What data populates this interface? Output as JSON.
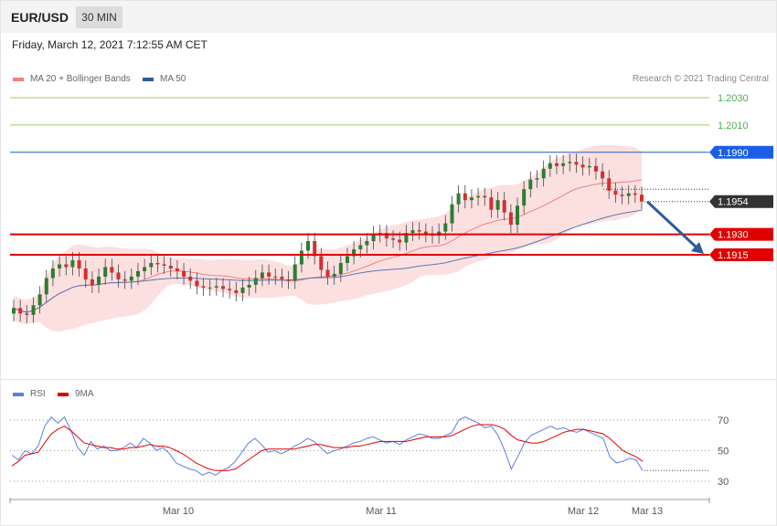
{
  "header": {
    "pair": "EUR/USD",
    "timeframe": "30 MIN"
  },
  "date_line": "Friday, March 12, 2021 7:12:55 AM CET",
  "legend": {
    "ma20": {
      "label": "MA 20 + Bollinger Bands",
      "color": "#f08080"
    },
    "ma50": {
      "label": "MA 50",
      "color": "#2c5a9c"
    },
    "rsi": {
      "label": "RSI",
      "color": "#5b7fe0"
    },
    "rsi_ma": {
      "label": "9MA",
      "color": "#e00000"
    }
  },
  "credit": "Research © 2021 Trading Central",
  "chart_data": [
    {
      "type": "candlestick",
      "y_range": [
        1.1846,
        1.2046
      ],
      "x_tick_labels": [
        "Mar 10",
        "Mar 11",
        "Mar 12",
        "Mar 13"
      ],
      "close_series": [
        1.1876,
        1.1872,
        1.1871,
        1.1878,
        1.1886,
        1.1898,
        1.1905,
        1.1908,
        1.1906,
        1.1911,
        1.1905,
        1.1897,
        1.1893,
        1.1899,
        1.1906,
        1.1902,
        1.1897,
        1.1896,
        1.1899,
        1.1903,
        1.1906,
        1.1909,
        1.1908,
        1.1907,
        1.1905,
        1.1903,
        1.1899,
        1.1896,
        1.1892,
        1.1891,
        1.1891,
        1.1892,
        1.189,
        1.1889,
        1.1887,
        1.1891,
        1.1893,
        1.1898,
        1.1902,
        1.1899,
        1.1899,
        1.1897,
        1.1896,
        1.1908,
        1.1918,
        1.1925,
        1.1914,
        1.1904,
        1.1899,
        1.1901,
        1.1909,
        1.1914,
        1.1919,
        1.1922,
        1.1925,
        1.193,
        1.1931,
        1.1927,
        1.1926,
        1.1924,
        1.1931,
        1.1933,
        1.1932,
        1.193,
        1.1929,
        1.1932,
        1.1938,
        1.1952,
        1.196,
        1.1955,
        1.1957,
        1.1958,
        1.1957,
        1.1948,
        1.1955,
        1.1946,
        1.1937,
        1.1951,
        1.1963,
        1.197,
        1.1971,
        1.1978,
        1.1982,
        1.198,
        1.1982,
        1.1983,
        1.1981,
        1.1979,
        1.198,
        1.1976,
        1.1971,
        1.1962,
        1.1959,
        1.1958,
        1.196,
        1.1959,
        1.1954
      ],
      "levels": [
        {
          "value": "1.2030",
          "kind": "target"
        },
        {
          "value": "1.2010",
          "kind": "target"
        },
        {
          "value": "1.1990",
          "kind": "resistance"
        },
        {
          "value": "1.1954",
          "kind": "last"
        },
        {
          "value": "1.1930",
          "kind": "support"
        },
        {
          "value": "1.1915",
          "kind": "support"
        }
      ],
      "forecast_arrow": {
        "from": 1.1954,
        "to": 1.1915
      }
    },
    {
      "type": "line",
      "name": "RSI",
      "y_range": [
        24,
        76
      ],
      "y_ticks": [
        "70",
        "50",
        "30"
      ],
      "series": [
        {
          "name": "RSI",
          "values": [
            47,
            44,
            50,
            48,
            53,
            66,
            72,
            68,
            72,
            63,
            52,
            47,
            56,
            51,
            53,
            50,
            50,
            52,
            55,
            52,
            58,
            55,
            50,
            52,
            48,
            42,
            40,
            38,
            37,
            34,
            36,
            34,
            37,
            39,
            43,
            49,
            55,
            58,
            54,
            49,
            50,
            48,
            50,
            53,
            55,
            58,
            56,
            52,
            48,
            50,
            51,
            53,
            55,
            56,
            58,
            59,
            57,
            55,
            56,
            54,
            57,
            59,
            61,
            60,
            58,
            58,
            60,
            62,
            70,
            72,
            70,
            68,
            65,
            66,
            60,
            50,
            38,
            46,
            55,
            60,
            62,
            64,
            66,
            64,
            65,
            63,
            62,
            64,
            62,
            60,
            58,
            46,
            42,
            43,
            45,
            44,
            37
          ]
        },
        {
          "name": "9MA",
          "values": [
            40,
            43,
            47,
            48,
            49,
            55,
            61,
            64,
            66,
            63,
            59,
            55,
            54,
            53,
            52,
            52,
            51,
            51,
            52,
            52,
            53,
            54,
            53,
            53,
            52,
            50,
            48,
            45,
            42,
            40,
            38,
            37,
            37,
            37,
            38,
            41,
            44,
            47,
            50,
            51,
            51,
            51,
            51,
            51,
            52,
            53,
            54,
            54,
            53,
            52,
            52,
            52,
            53,
            53,
            54,
            55,
            56,
            56,
            56,
            56,
            56,
            57,
            58,
            59,
            59,
            59,
            59,
            60,
            62,
            64,
            66,
            67,
            67,
            67,
            66,
            64,
            60,
            57,
            56,
            55,
            55,
            56,
            58,
            60,
            62,
            63,
            64,
            64,
            63,
            62,
            61,
            58,
            54,
            50,
            48,
            46,
            43
          ]
        }
      ]
    }
  ]
}
